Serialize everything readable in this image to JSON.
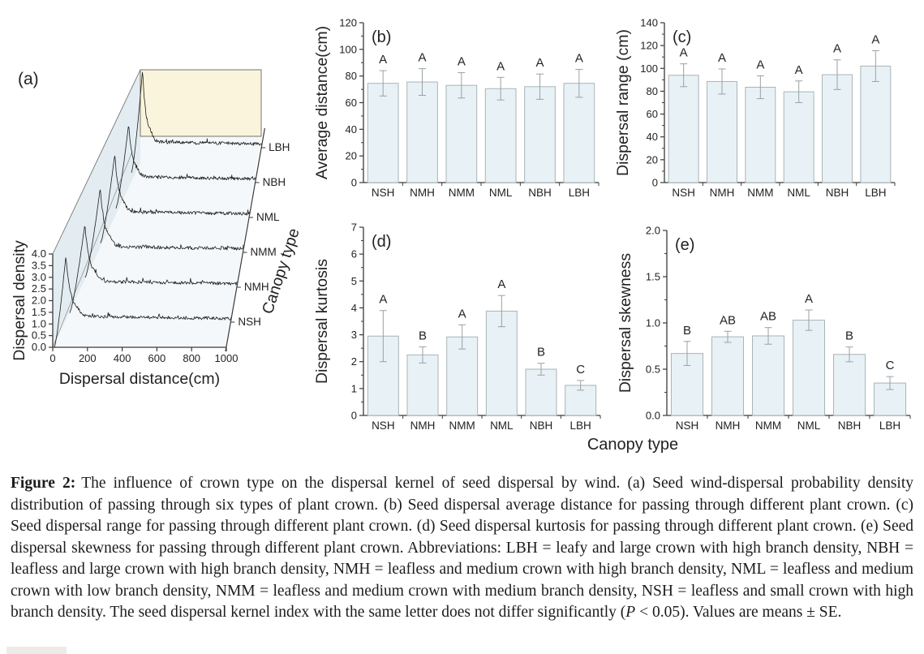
{
  "figure": {
    "shared_xlabel": "Canopy type"
  },
  "colors": {
    "axis": "#3a3a3a",
    "text": "#222222",
    "bar_fill": "#e8f2f6",
    "bar_stroke": "#a9b4b8",
    "error_bar": "#97a2a6",
    "curve": "#1c1c1c",
    "wall_fill": "#e3edf1",
    "floor_fill": "#f4f8fa",
    "back_wall_fill": "#fbf4dc",
    "back_wall_stroke": "#55554d"
  },
  "chart_data": [
    {
      "id": "a",
      "type": "ridgeline-3d",
      "panel_label": "(a)",
      "xlabel": "Dispersal  distance(cm)",
      "ylabel": "Dispersal density",
      "zlabel": "Canopy type",
      "xlim": [
        0,
        1000
      ],
      "xtick_step": 200,
      "ylim": [
        0,
        4
      ],
      "ytick_step": 0.5,
      "ytick_decimals": 1,
      "series": [
        {
          "name": "NSH",
          "peak_x_cm": 65,
          "peak_height": 2.65,
          "seed": 101
        },
        {
          "name": "NMH",
          "peak_x_cm": 90,
          "peak_height": 2.5,
          "seed": 202
        },
        {
          "name": "NMM",
          "peak_x_cm": 95,
          "peak_height": 2.55,
          "seed": 303
        },
        {
          "name": "NML",
          "peak_x_cm": 95,
          "peak_height": 2.5,
          "seed": 404
        },
        {
          "name": "NBH",
          "peak_x_cm": 90,
          "peak_height": 2.3,
          "seed": 505
        },
        {
          "name": "LBH",
          "peak_x_cm": 85,
          "peak_height": 3.1,
          "seed": 606
        }
      ]
    },
    {
      "id": "b",
      "type": "bar",
      "panel_label": "(b)",
      "ylabel": "Average distance(cm)",
      "ylim": [
        0,
        120
      ],
      "ytick_step": 20,
      "tick_decimals": 0,
      "categories": [
        "NSH",
        "NMH",
        "NMM",
        "NML",
        "NBH",
        "LBH"
      ],
      "values": [
        74.5,
        75.5,
        73,
        70.5,
        72,
        74.5
      ],
      "errors": [
        9.5,
        10,
        9.5,
        8.5,
        9.5,
        10.5
      ],
      "letters": [
        "A",
        "A",
        "A",
        "A",
        "A",
        "A"
      ]
    },
    {
      "id": "c",
      "type": "bar",
      "panel_label": "(c)",
      "ylabel": "Dispersal range (cm)",
      "ylim": [
        0,
        140
      ],
      "ytick_step": 20,
      "tick_decimals": 0,
      "categories": [
        "NSH",
        "NMH",
        "NMM",
        "NML",
        "NBH",
        "LBH"
      ],
      "values": [
        94,
        88.5,
        83.5,
        79.5,
        94.5,
        102
      ],
      "errors": [
        10,
        11,
        10,
        9.5,
        13,
        13.5
      ],
      "letters": [
        "A",
        "A",
        "A",
        "A",
        "A",
        "A"
      ]
    },
    {
      "id": "d",
      "type": "bar",
      "panel_label": "(d)",
      "ylabel": "Dispersal kurtosis",
      "ylim": [
        0,
        7
      ],
      "ytick_step": 1,
      "tick_decimals": 0,
      "categories": [
        "NSH",
        "NMH",
        "NMM",
        "NML",
        "NBH",
        "LBH"
      ],
      "values": [
        2.95,
        2.25,
        2.92,
        3.88,
        1.72,
        1.12
      ],
      "errors": [
        0.95,
        0.3,
        0.45,
        0.58,
        0.22,
        0.18
      ],
      "letters": [
        "A",
        "B",
        "A",
        "A",
        "B",
        "C"
      ]
    },
    {
      "id": "e",
      "type": "bar",
      "panel_label": "(e)",
      "ylabel": "Dispersal skewness",
      "ylim": [
        0,
        2
      ],
      "ytick_step": 0.5,
      "tick_decimals": 1,
      "categories": [
        "NSH",
        "NMH",
        "NMM",
        "NML",
        "NBH",
        "LBH"
      ],
      "values": [
        0.67,
        0.85,
        0.86,
        1.03,
        0.66,
        0.35
      ],
      "errors": [
        0.13,
        0.06,
        0.09,
        0.11,
        0.08,
        0.07
      ],
      "letters": [
        "B",
        "AB",
        "AB",
        "A",
        "B",
        "C"
      ]
    }
  ],
  "caption": {
    "label": "Figure 2:",
    "body": "The influence of crown type on the dispersal kernel of seed dispersal by wind. (a) Seed wind-dispersal probability density distribution of passing through six types of plant crown. (b) Seed dispersal average distance for passing through different plant crown. (c) Seed dispersal range for passing through different plant crown. (d) Seed dispersal kurtosis for passing through different plant crown. (e) Seed dispersal skewness for passing through different plant crown. Abbreviations: LBH = leafy and large crown with high branch density, NBH = leafless and large crown with high branch density, NMH = leafless and medium crown with high branch density, NML = leafless and medium crown with low branch density, NMM = leafless and medium crown with medium branch density, NSH = leafless and small crown with high branch density. The seed dispersal kernel index with the same letter does not differ significantly (",
    "p_symbol": "P",
    "body_end": " < 0.05). Values are means ± SE."
  }
}
